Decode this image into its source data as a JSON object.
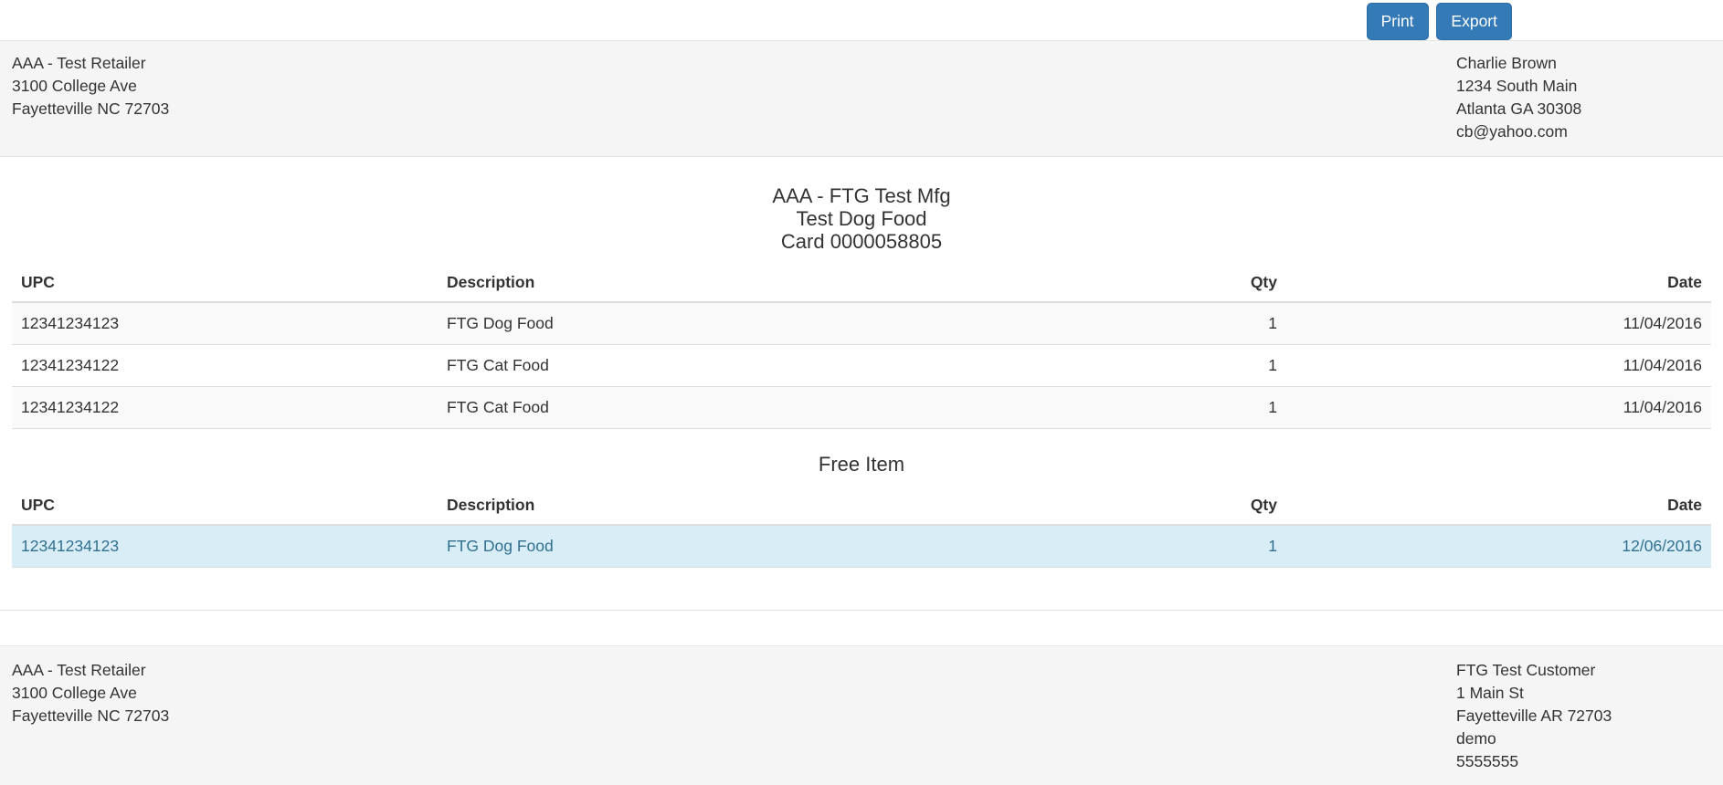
{
  "toolbar": {
    "print_label": "Print",
    "export_label": "Export"
  },
  "header": {
    "retailer": {
      "name": "AAA - Test Retailer",
      "address_line1": "3100 College Ave",
      "address_line2": "Fayetteville NC 72703"
    },
    "customer": {
      "name": "Charlie Brown",
      "address_line1": "1234 South Main",
      "address_line2": "Atlanta GA 30308",
      "email": "cb@yahoo.com"
    }
  },
  "report": {
    "title_line1": "AAA - FTG Test Mfg",
    "title_line2": "Test Dog Food",
    "title_line3": "Card 0000058805"
  },
  "purchases_table": {
    "columns": [
      "UPC",
      "Description",
      "Qty",
      "Date"
    ],
    "rows": [
      [
        "12341234123",
        "FTG Dog Food",
        "1",
        "11/04/2016"
      ],
      [
        "12341234122",
        "FTG Cat Food",
        "1",
        "11/04/2016"
      ],
      [
        "12341234122",
        "FTG Cat Food",
        "1",
        "11/04/2016"
      ]
    ]
  },
  "free_item_section": {
    "heading": "Free Item",
    "columns": [
      "UPC",
      "Description",
      "Qty",
      "Date"
    ],
    "rows": [
      [
        "12341234123",
        "FTG Dog Food",
        "1",
        "12/06/2016"
      ]
    ]
  },
  "footer": {
    "retailer": {
      "name": "AAA - Test Retailer",
      "address_line1": "3100 College Ave",
      "address_line2": "Fayetteville NC 72703"
    },
    "customer": {
      "name": "FTG Test Customer",
      "address_line1": "1 Main St",
      "address_line2": "Fayetteville AR 72703",
      "username": "demo",
      "phone": "5555555"
    }
  },
  "colors": {
    "button_bg": "#337ab7",
    "button_border": "#2e6da4",
    "band_bg": "#f5f5f5",
    "stripe_bg": "#f9f9f9",
    "highlight_row_bg": "#d9edf7",
    "highlight_row_text": "#31708f",
    "table_border": "#dddddd",
    "text": "#333333"
  }
}
